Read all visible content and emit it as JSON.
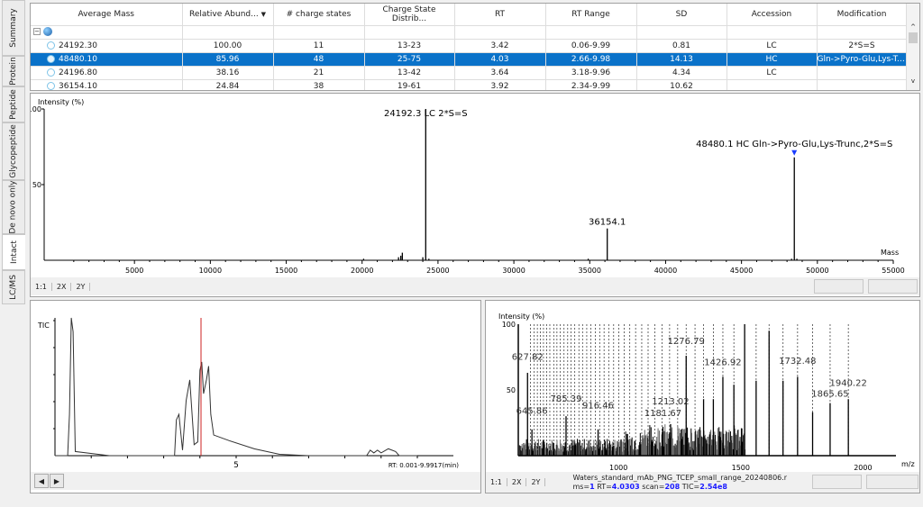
{
  "side_tabs": [
    {
      "label": "Summary"
    },
    {
      "label": "Protein"
    },
    {
      "label": "Peptide"
    },
    {
      "label": "Glycopeptide"
    },
    {
      "label": "De novo only"
    },
    {
      "label": "Intact",
      "active": true
    },
    {
      "label": "LC/MS"
    }
  ],
  "table": {
    "columns": [
      "Average Mass",
      "Relative Abund...",
      "# charge states",
      "Charge State Distrib...",
      "RT",
      "RT Range",
      "SD",
      "Accession",
      "Modification"
    ],
    "sort_indicator": "▼",
    "rows": [
      {
        "mass": "24192.30",
        "abund": "100.00",
        "charges": "11",
        "dist": "13-23",
        "rt": "3.42",
        "range": "0.06-9.99",
        "sd": "0.81",
        "acc": "LC",
        "mod": "2*S=S"
      },
      {
        "mass": "48480.10",
        "abund": "85.96",
        "charges": "48",
        "dist": "25-75",
        "rt": "4.03",
        "range": "2.66-9.98",
        "sd": "14.13",
        "acc": "HC",
        "mod": "Gln->Pyro-Glu,Lys-Tr...",
        "selected": true
      },
      {
        "mass": "24196.80",
        "abund": "38.16",
        "charges": "21",
        "dist": "13-42",
        "rt": "3.64",
        "range": "3.18-9.96",
        "sd": "4.34",
        "acc": "LC",
        "mod": ""
      },
      {
        "mass": "36154.10",
        "abund": "24.84",
        "charges": "38",
        "dist": "19-61",
        "rt": "3.92",
        "range": "2.34-9.99",
        "sd": "10.62",
        "acc": "",
        "mod": ""
      }
    ]
  },
  "zoom_buttons": [
    "1:1",
    "2X",
    "2Y"
  ],
  "colors": {
    "selection": "#0a72c9",
    "marker": "#1a3cff",
    "rt_line": "#cc2222",
    "status_value": "#1a1aff"
  },
  "chart_data": [
    {
      "type": "bar",
      "name": "deconvolved-spectrum",
      "ylabel": "Intensity (%)",
      "xlabel": "Mass",
      "xlim": [
        0,
        55000
      ],
      "ylim": [
        0,
        100
      ],
      "xticks": [
        5000,
        10000,
        15000,
        20000,
        25000,
        30000,
        35000,
        40000,
        45000,
        50000,
        55000
      ],
      "yticks": [
        50,
        100
      ],
      "peaks": [
        [
          20100,
          1
        ],
        [
          22400,
          2
        ],
        [
          22550,
          3
        ],
        [
          22650,
          5
        ],
        [
          24000,
          2
        ],
        [
          24192.3,
          100
        ],
        [
          24400,
          1
        ],
        [
          34900,
          1
        ],
        [
          36154.1,
          21
        ],
        [
          48300,
          1
        ],
        [
          48480.1,
          68
        ],
        [
          48650,
          1
        ]
      ],
      "annotations": [
        {
          "x": 24192.3,
          "y": 100,
          "text": "24192.3 LC 2*S=S"
        },
        {
          "x": 36154.1,
          "y": 21,
          "text": "36154.1"
        },
        {
          "x": 48480.1,
          "y": 68,
          "text": "48480.1 HC Gln->Pyro-Glu,Lys-Trunc,2*S=S",
          "marker": true
        }
      ]
    },
    {
      "type": "line",
      "name": "tic-chromatogram",
      "ylabel": "TIC",
      "xlim": [
        0,
        10
      ],
      "xticks": [
        5
      ],
      "selected_rt": 4.03,
      "range_label": "RT: 0.001-9.9917(min)",
      "points": [
        [
          0,
          0
        ],
        [
          0.35,
          0
        ],
        [
          0.4,
          30
        ],
        [
          0.45,
          100
        ],
        [
          0.5,
          90
        ],
        [
          0.56,
          3
        ],
        [
          1.5,
          0
        ],
        [
          3.0,
          0
        ],
        [
          3.3,
          0
        ],
        [
          3.35,
          26
        ],
        [
          3.42,
          30
        ],
        [
          3.52,
          4
        ],
        [
          3.62,
          40
        ],
        [
          3.72,
          55
        ],
        [
          3.84,
          8
        ],
        [
          3.94,
          10
        ],
        [
          4.0,
          62
        ],
        [
          4.05,
          68
        ],
        [
          4.1,
          45
        ],
        [
          4.18,
          55
        ],
        [
          4.24,
          65
        ],
        [
          4.3,
          30
        ],
        [
          4.38,
          15
        ],
        [
          4.8,
          11
        ],
        [
          5.5,
          5
        ],
        [
          6.2,
          1
        ],
        [
          7,
          0
        ],
        [
          8.6,
          0
        ],
        [
          8.7,
          4
        ],
        [
          8.8,
          2
        ],
        [
          8.9,
          4
        ],
        [
          9.0,
          2
        ],
        [
          9.2,
          5
        ],
        [
          9.4,
          3
        ],
        [
          9.5,
          0
        ],
        [
          10,
          0
        ]
      ]
    },
    {
      "type": "bar",
      "name": "ms-spectrum",
      "ylabel": "Intensity (%)",
      "xlabel": "m/z",
      "xlim": [
        590,
        2135
      ],
      "ylim": [
        0,
        100
      ],
      "xticks": [
        1000,
        1500,
        2000
      ],
      "yticks": [
        50,
        100
      ],
      "peaks": [
        [
          627.82,
          63
        ],
        [
          645.86,
          20
        ],
        [
          785.39,
          30
        ],
        [
          916.46,
          20
        ],
        [
          1181.67,
          22
        ],
        [
          1213.02,
          24
        ],
        [
          1276.79,
          76
        ],
        [
          1348,
          43
        ],
        [
          1388,
          43
        ],
        [
          1426.92,
          60
        ],
        [
          1472,
          54
        ],
        [
          1516,
          100
        ],
        [
          1563,
          57
        ],
        [
          1616,
          95
        ],
        [
          1673,
          57
        ],
        [
          1732.48,
          60
        ],
        [
          1794,
          33
        ],
        [
          1865.65,
          40
        ],
        [
          1940.22,
          43
        ]
      ],
      "dashed": [
        640,
        655,
        668,
        680,
        693,
        706,
        719,
        735,
        748,
        762,
        777,
        792,
        806,
        821,
        838,
        853,
        870,
        887,
        905,
        923,
        941,
        960,
        980,
        1001,
        1023,
        1046,
        1070,
        1095,
        1121,
        1149,
        1178,
        1209,
        1242,
        1276.79,
        1313,
        1348,
        1388,
        1426.92,
        1472,
        1516,
        1563,
        1616,
        1673,
        1732.48,
        1794,
        1865.65,
        1940.22
      ],
      "labels": [
        {
          "x": 627.82,
          "y": 73,
          "text": "627.82"
        },
        {
          "x": 645.86,
          "y": 32,
          "text": "645.86"
        },
        {
          "x": 785.39,
          "y": 41,
          "text": "785.39"
        },
        {
          "x": 916.46,
          "y": 36,
          "text": "916.46"
        },
        {
          "x": 1181.67,
          "y": 30,
          "text": "1181.67"
        },
        {
          "x": 1213.02,
          "y": 39,
          "text": "1213.02"
        },
        {
          "x": 1276.79,
          "y": 85,
          "text": "1276.79"
        },
        {
          "x": 1426.92,
          "y": 69,
          "text": "1426.92"
        },
        {
          "x": 1732.48,
          "y": 70,
          "text": "1732.48"
        },
        {
          "x": 1865.65,
          "y": 45,
          "text": "1865.65"
        },
        {
          "x": 1940.22,
          "y": 53,
          "text": "1940.22"
        }
      ]
    }
  ],
  "status": {
    "file": "Waters_standard_mAb_PNG_TCEP_small_range_20240806.r",
    "ms_label": "ms=",
    "ms": "1",
    "rt_label": " RT=",
    "rt": "4.0303",
    "scan_label": " scan=",
    "scan": "208",
    "tic_label": " TIC=",
    "tic": "2.54e8"
  }
}
